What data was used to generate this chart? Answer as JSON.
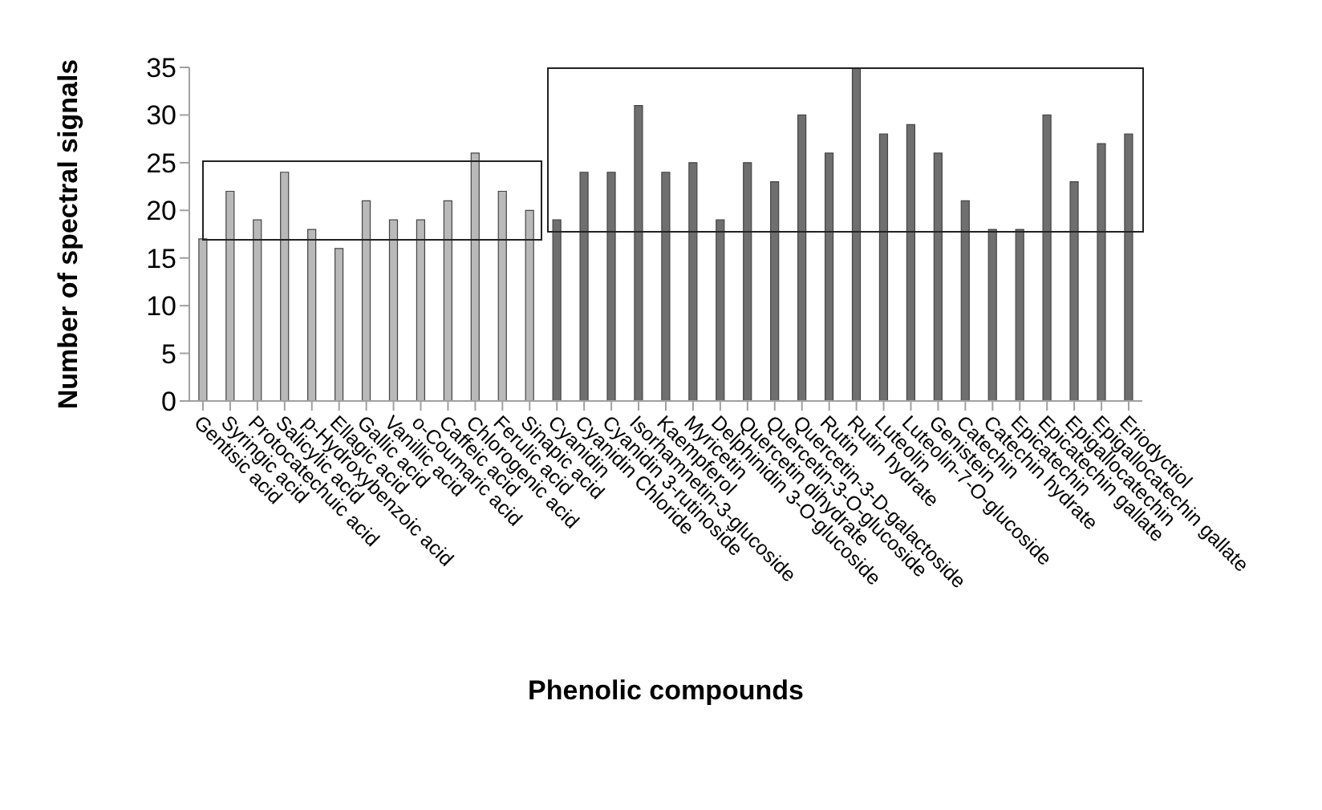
{
  "chart_data": {
    "type": "bar",
    "xlabel": "Phenolic compounds",
    "ylabel": "Number of spectral signals",
    "categories": [
      "Gentisic acid",
      "Syringic acid",
      "Protocatechuic acid",
      "Salicylic acid",
      "p-Hydroxybenzoic acid",
      "Ellagic acid",
      "Gallic acid",
      "Vanillic acid",
      "o-Coumaric acid",
      "Caffeic acid",
      "Chlorogenic acid",
      "Ferulic acid",
      "Sinapic acid",
      "Cyanidin",
      "Cyanidin Chloride",
      "Cyanidin 3-rutinoside",
      "Isorhamnetin-3-glucoside",
      "Kaempferol",
      "Myricetin",
      "Delphinidin 3-O-glucoside",
      "Quercetin dihydrate",
      "Quercetin-3-O-glucoside",
      "Quercetin-3-D-galactoside",
      "Rutin",
      "Rutin hydrate",
      "Luteolin",
      "Luteolin-7-O-glucoside",
      "Genistein",
      "Catechin",
      "Catechin hydrate",
      "Epicatechin",
      "Epicatechin gallate",
      "Epigallocatechin",
      "Epigallocatechin gallate",
      "Eriodyctiol"
    ],
    "values": [
      17,
      22,
      19,
      24,
      18,
      16,
      21,
      19,
      19,
      21,
      26,
      22,
      20,
      19,
      24,
      24,
      31,
      24,
      25,
      19,
      25,
      23,
      30,
      26,
      35,
      28,
      29,
      26,
      21,
      18,
      18,
      30,
      23,
      27,
      28
    ],
    "colors": [
      "#b9b9b9",
      "#b9b9b9",
      "#b9b9b9",
      "#b9b9b9",
      "#b9b9b9",
      "#b9b9b9",
      "#b9b9b9",
      "#b9b9b9",
      "#b9b9b9",
      "#b9b9b9",
      "#b9b9b9",
      "#b9b9b9",
      "#b9b9b9",
      "#6f6f6f",
      "#6f6f6f",
      "#6f6f6f",
      "#6f6f6f",
      "#6f6f6f",
      "#6f6f6f",
      "#6f6f6f",
      "#6f6f6f",
      "#6f6f6f",
      "#6f6f6f",
      "#6f6f6f",
      "#6f6f6f",
      "#6f6f6f",
      "#6f6f6f",
      "#6f6f6f",
      "#6f6f6f",
      "#6f6f6f",
      "#6f6f6f",
      "#6f6f6f",
      "#6f6f6f",
      "#6f6f6f",
      "#6f6f6f"
    ],
    "ylim": [
      0,
      35
    ],
    "yticks": [
      0,
      5,
      10,
      15,
      20,
      25,
      30,
      35
    ],
    "grid": false,
    "legend": false
  }
}
